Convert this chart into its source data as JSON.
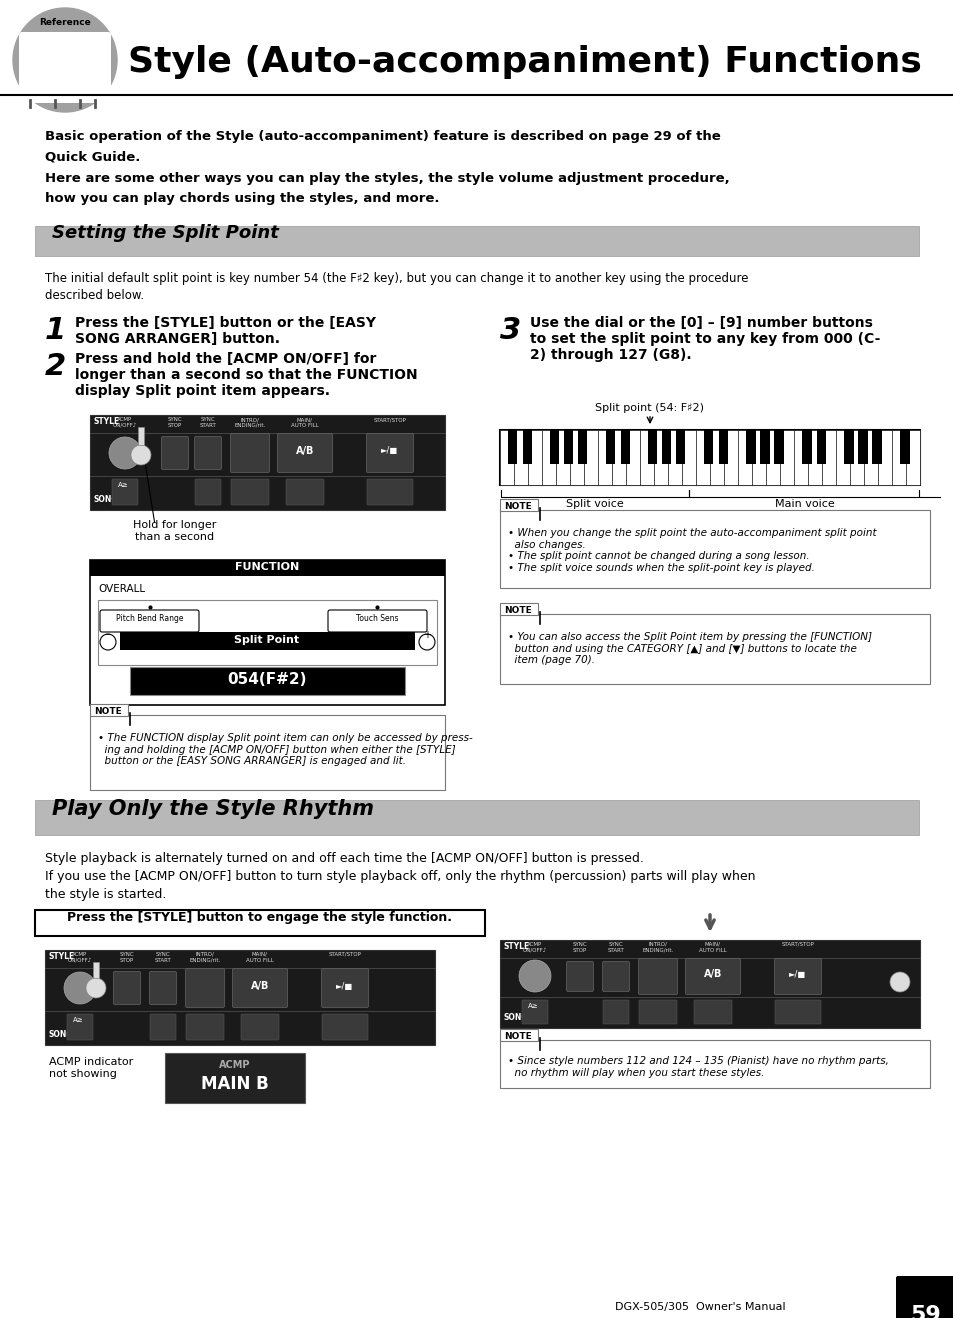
{
  "title": "Style (Auto-accompaniment) Functions",
  "bg_color": "#ffffff",
  "section1_title": "Setting the Split Point",
  "section2_title": "Play Only the Style Rhythm",
  "intro_text1": "Basic operation of the Style (auto-accompaniment) feature is described on page 29 of the",
  "intro_text1b": "Quick Guide.",
  "intro_text2": "Here are some other ways you can play the styles, the style volume adjustment procedure,",
  "intro_text2b": "how you can play chords using the styles, and more.",
  "split_intro1": "The initial default split point is key number 54 (the F♯2 key), but you can change it to another key using the procedure",
  "split_intro2": "described below.",
  "step1_num": "1",
  "step1_text": "Press the [STYLE] button or the [EASY\nSONG ARRANGER] button.",
  "step2_num": "2",
  "step2_text": "Press and hold the [ACMP ON/OFF] for\nlonger than a second so that the FUNCTION\ndisplay Split point item appears.",
  "step3_num": "3",
  "step3_text": "Use the dial or the [0] – [9] number buttons\nto set the split point to any key from 000 (C-\n2) through 127 (G8).",
  "hold_text": "Hold for longer\nthan a second",
  "split_point_label": "Split point (54: F♯2)",
  "split_voice_label": "Split voice",
  "main_voice_label": "Main voice",
  "note1_text": "• The FUNCTION display Split point item can only be accessed by press-\n  ing and holding the [ACMP ON/OFF] button when either the [STYLE]\n  button or the [EASY SONG ARRANGER] is engaged and lit.",
  "note2_text": "• When you change the split point the auto-accompaniment split point\n  also changes.\n• The split point cannot be changed during a song lesson.\n• The split voice sounds when the split-point key is played.",
  "note3_text": "• You can also access the Split Point item by pressing the [FUNCTION]\n  button and using the CATEGORY [▲] and [▼] buttons to locate the\n  item (page 70).",
  "rhythm_text1": "Style playback is alternately turned on and off each time the [ACMP ON/OFF] button is pressed.",
  "rhythm_text2": "If you use the [ACMP ON/OFF] button to turn style playback off, only the rhythm (percussion) parts will play when",
  "rhythm_text2b": "the style is started.",
  "press_style_text": "Press the [STYLE] button to engage the style function.",
  "acmp_indicator_text": "ACMP indicator\nnot showing",
  "note4_text": "• Since style numbers 112 and 124 – 135 (Pianist) have no rhythm parts,\n  no rhythm will play when you start these styles.",
  "page_text": "DGX-505/305  Owner's Manual",
  "page_num": "59",
  "button_labels": [
    "ACMP\nON/OFF♪",
    "SYNC\nSTOP",
    "SYNC\nSTART",
    "INTRO/\nENDING/rit.",
    "MAIN/\nAUTO FILL",
    "START/STOP"
  ],
  "function_display_val": "054(F#2)",
  "function_title": "FUNCTION",
  "overall_text": "OVERALL",
  "pitch_bend_text": "Pitch Bend Range",
  "touch_sens_text": "Touch Sens",
  "split_point_btn": "Split Point",
  "acmp_text": "ACMP",
  "main_b_text": "MAIN B"
}
